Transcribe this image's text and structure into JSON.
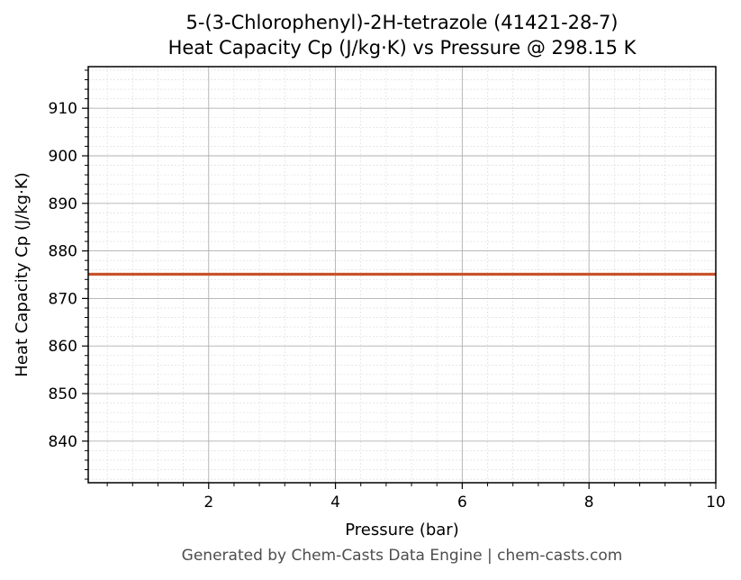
{
  "chart_data": {
    "type": "line",
    "title": "5-(3-Chlorophenyl)-2H-tetrazole (41421-28-7)",
    "subtitle": "Heat Capacity Cp (J/kg·K) vs Pressure @ 298.15 K",
    "xlabel": "Pressure (bar)",
    "ylabel": "Heat Capacity Cp (J/kg·K)",
    "xlim": [
      0.1,
      10
    ],
    "ylim": [
      831.25,
      918.75
    ],
    "xticks": [
      2,
      4,
      6,
      8,
      10
    ],
    "yticks": [
      840,
      850,
      860,
      870,
      880,
      890,
      900,
      910
    ],
    "grid": true,
    "series": [
      {
        "color": "#c8532a",
        "x": [
          0.1,
          10
        ],
        "y": [
          875.1,
          875.1
        ]
      }
    ]
  },
  "footer": "Generated by Chem-Casts Data Engine | chem-casts.com"
}
